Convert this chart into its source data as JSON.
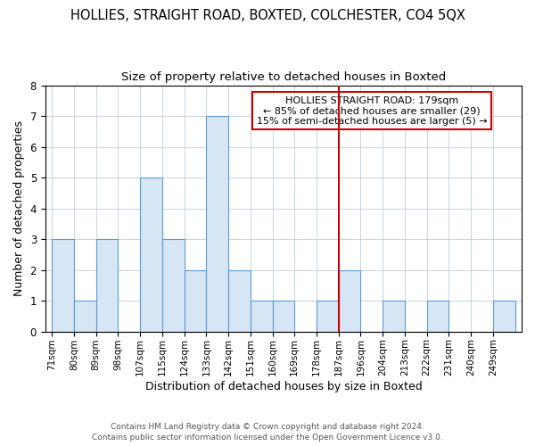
{
  "title": "HOLLIES, STRAIGHT ROAD, BOXTED, COLCHESTER, CO4 5QX",
  "subtitle": "Size of property relative to detached houses in Boxted",
  "xlabel": "Distribution of detached houses by size in Boxted",
  "ylabel": "Number of detached properties",
  "footer_line1": "Contains HM Land Registry data © Crown copyright and database right 2024.",
  "footer_line2": "Contains public sector information licensed under the Open Government Licence v3.0.",
  "bin_labels": [
    "71sqm",
    "80sqm",
    "89sqm",
    "98sqm",
    "107sqm",
    "115sqm",
    "124sqm",
    "133sqm",
    "142sqm",
    "151sqm",
    "160sqm",
    "169sqm",
    "178sqm",
    "187sqm",
    "196sqm",
    "204sqm",
    "213sqm",
    "222sqm",
    "231sqm",
    "240sqm",
    "249sqm"
  ],
  "bar_values": [
    3,
    1,
    3,
    0,
    5,
    3,
    2,
    7,
    2,
    1,
    1,
    0,
    1,
    2,
    0,
    1,
    0,
    1,
    0,
    0,
    1
  ],
  "bar_color": "#d6e6f5",
  "bar_edge_color": "#5b9bd5",
  "vline_x": 12.5,
  "vline_color": "#cc0000",
  "annotation_text": "HOLLIES STRAIGHT ROAD: 179sqm\n← 85% of detached houses are smaller (29)\n15% of semi-detached houses are larger (5) →",
  "annotation_box_edge": "#cc0000",
  "ylim": [
    0,
    8
  ],
  "yticks": [
    0,
    1,
    2,
    3,
    4,
    5,
    6,
    7,
    8
  ],
  "background_color": "#ffffff",
  "grid_color": "#c8d4e0",
  "title_fontsize": 10.5,
  "subtitle_fontsize": 9.5
}
